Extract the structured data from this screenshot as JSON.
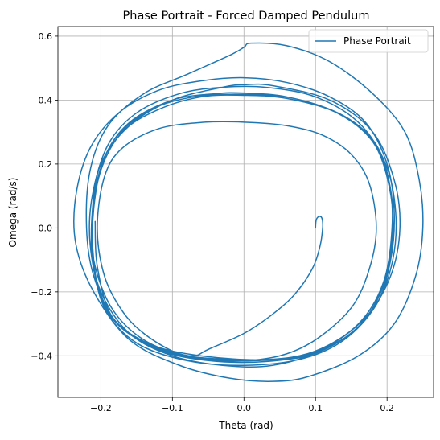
{
  "chart_data": {
    "type": "line",
    "title": "Phase Portrait - Forced Damped Pendulum",
    "xlabel": "Theta (rad)",
    "ylabel": "Omega (rad/s)",
    "xlim": [
      -0.26,
      0.265
    ],
    "ylim": [
      -0.53,
      0.63
    ],
    "xticks": [
      -0.2,
      -0.1,
      0.0,
      0.1,
      0.2
    ],
    "xtick_labels": [
      "−0.2",
      "−0.1",
      "0.0",
      "0.1",
      "0.2"
    ],
    "yticks": [
      -0.4,
      -0.2,
      0.0,
      0.2,
      0.4,
      0.6
    ],
    "ytick_labels": [
      "−0.4",
      "−0.2",
      "0.0",
      "0.2",
      "0.4",
      "0.6"
    ],
    "grid": true,
    "legend_position": "top-right",
    "color": "#1f77b4",
    "series": [
      {
        "name": "Phase Portrait",
        "points": [
          [
            0.1,
            0.0
          ],
          [
            0.101,
            0.025
          ],
          [
            0.105,
            0.036
          ],
          [
            0.109,
            0.03
          ],
          [
            0.11,
            0.0
          ],
          [
            0.106,
            -0.06
          ],
          [
            0.095,
            -0.13
          ],
          [
            0.07,
            -0.21
          ],
          [
            0.04,
            -0.27
          ],
          [
            0.0,
            -0.33
          ],
          [
            -0.05,
            -0.38
          ],
          [
            -0.07,
            -0.4
          ],
          [
            -0.1,
            -0.385
          ],
          [
            -0.14,
            -0.33
          ],
          [
            -0.17,
            -0.26
          ],
          [
            -0.195,
            -0.15
          ],
          [
            -0.205,
            0.0
          ],
          [
            -0.195,
            0.16
          ],
          [
            -0.17,
            0.25
          ],
          [
            -0.12,
            0.31
          ],
          [
            -0.06,
            0.33
          ],
          [
            0.0,
            0.331
          ],
          [
            0.06,
            0.32
          ],
          [
            0.11,
            0.29
          ],
          [
            0.15,
            0.23
          ],
          [
            0.175,
            0.14
          ],
          [
            0.185,
            0.0
          ],
          [
            0.175,
            -0.13
          ],
          [
            0.15,
            -0.25
          ],
          [
            0.1,
            -0.35
          ],
          [
            0.05,
            -0.4
          ],
          [
            -0.01,
            -0.415
          ],
          [
            -0.08,
            -0.4
          ],
          [
            -0.14,
            -0.35
          ],
          [
            -0.185,
            -0.25
          ],
          [
            -0.21,
            -0.1
          ],
          [
            -0.212,
            0.05
          ],
          [
            -0.2,
            0.2
          ],
          [
            -0.16,
            0.32
          ],
          [
            -0.1,
            0.4
          ],
          [
            -0.03,
            0.44
          ],
          [
            0.0,
            0.448
          ],
          [
            0.04,
            0.445
          ],
          [
            0.12,
            0.4
          ],
          [
            0.18,
            0.3
          ],
          [
            0.21,
            0.15
          ],
          [
            0.218,
            0.0
          ],
          [
            0.205,
            -0.15
          ],
          [
            0.17,
            -0.28
          ],
          [
            0.11,
            -0.38
          ],
          [
            0.04,
            -0.43
          ],
          [
            -0.03,
            -0.43
          ],
          [
            -0.1,
            -0.4
          ],
          [
            -0.16,
            -0.33
          ],
          [
            -0.2,
            -0.2
          ],
          [
            -0.215,
            -0.05
          ],
          [
            -0.212,
            0.1
          ],
          [
            -0.19,
            0.26
          ],
          [
            -0.15,
            0.36
          ],
          [
            -0.09,
            0.42
          ],
          [
            -0.03,
            0.44
          ],
          [
            0.03,
            0.44
          ],
          [
            0.1,
            0.41
          ],
          [
            0.16,
            0.33
          ],
          [
            0.198,
            0.2
          ],
          [
            0.212,
            0.05
          ],
          [
            0.208,
            -0.1
          ],
          [
            0.185,
            -0.24
          ],
          [
            0.14,
            -0.35
          ],
          [
            0.08,
            -0.41
          ],
          [
            0.0,
            -0.43
          ],
          [
            -0.08,
            -0.415
          ],
          [
            -0.15,
            -0.36
          ],
          [
            -0.195,
            -0.25
          ],
          [
            -0.21,
            -0.1
          ],
          [
            -0.21,
            0.06
          ],
          [
            -0.195,
            0.22
          ],
          [
            -0.16,
            0.33
          ],
          [
            -0.1,
            0.4
          ],
          [
            -0.04,
            0.42
          ],
          [
            0.0,
            0.422
          ],
          [
            0.06,
            0.41
          ],
          [
            0.13,
            0.36
          ],
          [
            0.18,
            0.27
          ],
          [
            0.203,
            0.13
          ],
          [
            0.208,
            -0.02
          ],
          [
            0.195,
            -0.18
          ],
          [
            0.16,
            -0.31
          ],
          [
            0.1,
            -0.39
          ],
          [
            0.03,
            -0.418
          ],
          [
            -0.05,
            -0.415
          ],
          [
            -0.12,
            -0.38
          ],
          [
            -0.18,
            -0.29
          ],
          [
            -0.208,
            -0.15
          ],
          [
            -0.212,
            0.0
          ],
          [
            -0.205,
            0.15
          ],
          [
            -0.18,
            0.28
          ],
          [
            -0.13,
            0.37
          ],
          [
            -0.07,
            0.41
          ],
          [
            0.0,
            0.418
          ],
          [
            0.07,
            0.405
          ],
          [
            0.14,
            0.35
          ],
          [
            0.185,
            0.26
          ],
          [
            0.205,
            0.12
          ],
          [
            0.207,
            -0.03
          ],
          [
            0.193,
            -0.19
          ],
          [
            0.155,
            -0.32
          ],
          [
            0.09,
            -0.395
          ],
          [
            0.02,
            -0.415
          ],
          [
            -0.06,
            -0.41
          ],
          [
            -0.13,
            -0.37
          ],
          [
            -0.185,
            -0.28
          ],
          [
            -0.21,
            -0.13
          ],
          [
            -0.212,
            0.02
          ],
          [
            -0.2,
            0.18
          ],
          [
            -0.17,
            0.3
          ],
          [
            -0.12,
            0.37
          ],
          [
            -0.06,
            0.41
          ],
          [
            0.0,
            0.415
          ],
          [
            0.06,
            0.405
          ],
          [
            0.13,
            0.36
          ],
          [
            0.18,
            0.27
          ],
          [
            0.203,
            0.14
          ],
          [
            0.207,
            0.0
          ],
          [
            0.195,
            -0.17
          ],
          [
            0.16,
            -0.3
          ],
          [
            0.1,
            -0.385
          ],
          [
            0.03,
            -0.412
          ],
          [
            -0.06,
            -0.4
          ],
          [
            -0.13,
            -0.365
          ],
          [
            -0.18,
            -0.29
          ],
          [
            -0.21,
            -0.15
          ],
          [
            -0.22,
            0.0
          ],
          [
            -0.215,
            0.18
          ],
          [
            -0.19,
            0.32
          ],
          [
            -0.14,
            0.42
          ],
          [
            -0.08,
            0.48
          ],
          [
            -0.02,
            0.54
          ],
          [
            0.0,
            0.565
          ],
          [
            0.01,
            0.578
          ],
          [
            0.06,
            0.57
          ],
          [
            0.12,
            0.52
          ],
          [
            0.18,
            0.42
          ],
          [
            0.225,
            0.3
          ],
          [
            0.245,
            0.15
          ],
          [
            0.25,
            0.0
          ],
          [
            0.24,
            -0.15
          ],
          [
            0.21,
            -0.3
          ],
          [
            0.16,
            -0.4
          ],
          [
            0.09,
            -0.465
          ],
          [
            0.04,
            -0.48
          ],
          [
            -0.02,
            -0.47
          ],
          [
            -0.09,
            -0.43
          ],
          [
            -0.16,
            -0.35
          ],
          [
            -0.21,
            -0.2
          ],
          [
            -0.235,
            -0.05
          ],
          [
            -0.235,
            0.1
          ],
          [
            -0.215,
            0.25
          ],
          [
            -0.175,
            0.36
          ],
          [
            -0.12,
            0.43
          ],
          [
            -0.06,
            0.46
          ],
          [
            0.0,
            0.47
          ],
          [
            0.06,
            0.455
          ],
          [
            0.12,
            0.41
          ],
          [
            0.17,
            0.33
          ],
          [
            0.2,
            0.2
          ],
          [
            0.21,
            0.05
          ],
          [
            0.205,
            -0.1
          ],
          [
            0.185,
            -0.24
          ],
          [
            0.14,
            -0.345
          ],
          [
            0.08,
            -0.405
          ],
          [
            0.0,
            -0.412
          ],
          [
            -0.08,
            -0.4
          ],
          [
            -0.14,
            -0.355
          ],
          [
            -0.185,
            -0.275
          ],
          [
            -0.205,
            -0.12
          ],
          [
            -0.208,
            0.02
          ]
        ]
      }
    ]
  }
}
